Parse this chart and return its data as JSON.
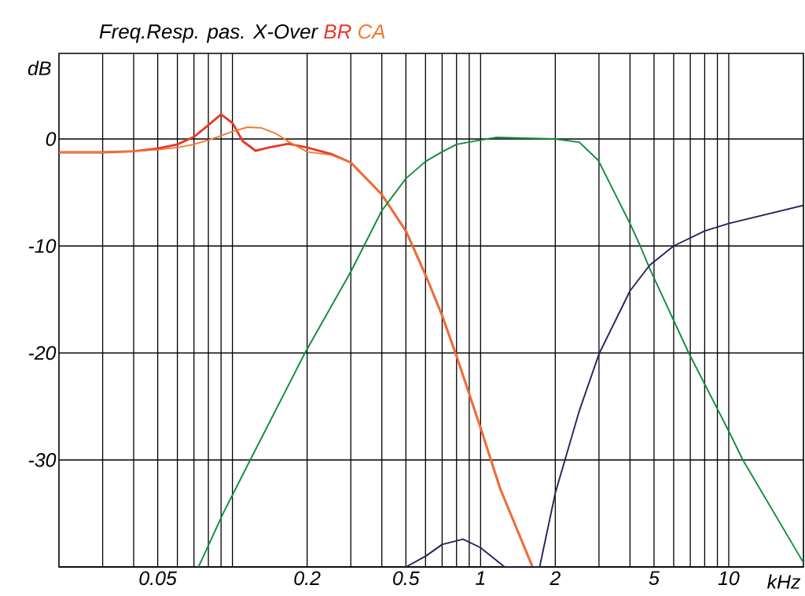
{
  "chart_data": {
    "type": "line",
    "title": "Freq.Resp. pas. X-Over",
    "xlabel": "kHz",
    "ylabel": "dB",
    "log": "x",
    "grid": true,
    "legend": "top",
    "xlim": [
      0.02,
      20
    ],
    "ylim": [
      -40,
      8
    ],
    "xticks": [
      {
        "value": 0.03,
        "label": null
      },
      {
        "value": 0.04,
        "label": null
      },
      0.05,
      {
        "value": 0.06,
        "label": null
      },
      {
        "value": 0.07,
        "label": null
      },
      {
        "value": 0.08,
        "label": null
      },
      {
        "value": 0.09,
        "label": null
      },
      {
        "value": 0.1,
        "label": null
      },
      0.2,
      {
        "value": 0.3,
        "label": null
      },
      {
        "value": 0.4,
        "label": null
      },
      0.5,
      {
        "value": 0.6,
        "label": null
      },
      {
        "value": 0.7,
        "label": null
      },
      {
        "value": 0.8,
        "label": null
      },
      {
        "value": 0.9,
        "label": null
      },
      1,
      2,
      {
        "value": 3,
        "label": null
      },
      {
        "value": 4,
        "label": null
      },
      5,
      {
        "value": 6,
        "label": null
      },
      {
        "value": 7,
        "label": null
      },
      {
        "value": 8,
        "label": null
      },
      {
        "value": 9,
        "label": null
      },
      10
    ],
    "yticks": [
      {
        "value": -40,
        "label": null
      },
      -30,
      -20,
      -10,
      0
    ],
    "series": [
      {
        "name": "BR",
        "color": "#e8392a",
        "x": [
          0.02,
          0.03,
          0.04,
          0.05,
          0.06,
          0.07,
          0.08,
          0.09,
          0.1,
          0.11,
          0.124,
          0.14,
          0.168,
          0.2,
          0.25,
          0.3,
          0.4,
          0.5,
          0.6,
          0.7,
          0.8,
          1.0,
          1.2,
          1.62
        ],
        "values": [
          -1.25,
          -1.25,
          -1.15,
          -0.9,
          -0.5,
          0.2,
          1.3,
          2.3,
          1.5,
          -0.2,
          -1.1,
          -0.8,
          -0.45,
          -0.8,
          -1.4,
          -2.2,
          -5.2,
          -8.6,
          -12.7,
          -16.5,
          -20.3,
          -27,
          -32.7,
          -40
        ]
      },
      {
        "name": "CA",
        "color": "#f07a30",
        "x": [
          0.02,
          0.03,
          0.04,
          0.05,
          0.06,
          0.07,
          0.08,
          0.09,
          0.1,
          0.115,
          0.13,
          0.15,
          0.17,
          0.2,
          0.25,
          0.3,
          0.4,
          0.5,
          0.6,
          0.7,
          0.8,
          1.0,
          1.2,
          1.62
        ],
        "values": [
          -1.25,
          -1.25,
          -1.15,
          -1.0,
          -0.8,
          -0.5,
          -0.1,
          0.3,
          0.7,
          1.1,
          1.05,
          0.5,
          -0.3,
          -1.2,
          -1.5,
          -2.2,
          -5.2,
          -8.6,
          -12.7,
          -16.5,
          -20.3,
          -27,
          -32.7,
          -40
        ]
      },
      {
        "color": "#0f8c3c",
        "x": [
          0.073,
          0.0917,
          0.118,
          0.196,
          0.3,
          0.4,
          0.5,
          0.6,
          0.7,
          0.8,
          1.0,
          1.16,
          2.0,
          2.5,
          2.98,
          4.0,
          4.4,
          4.8,
          6.9,
          10,
          11.4,
          20
        ],
        "values": [
          -40,
          -35,
          -30,
          -20,
          -12.4,
          -6.7,
          -3.7,
          -2.1,
          -1.2,
          -0.5,
          -0.1,
          0.15,
          0,
          -0.3,
          -2,
          -7.9,
          -10,
          -12.1,
          -20,
          -27.3,
          -30,
          -39.6
        ]
      },
      {
        "color": "#2b1f5a",
        "x": [
          0.5,
          0.6,
          0.7,
          0.85,
          1.0,
          1.25,
          1.73,
          2.0,
          2.5,
          3.0,
          4.0,
          4.8,
          6.0,
          8.0,
          10,
          20
        ],
        "values": [
          -40,
          -39,
          -37.9,
          -37.4,
          -38.2,
          -40,
          -40,
          -33.1,
          -25.4,
          -20.1,
          -14.2,
          -11.8,
          -10,
          -8.6,
          -7.9,
          -6.2
        ]
      }
    ]
  }
}
